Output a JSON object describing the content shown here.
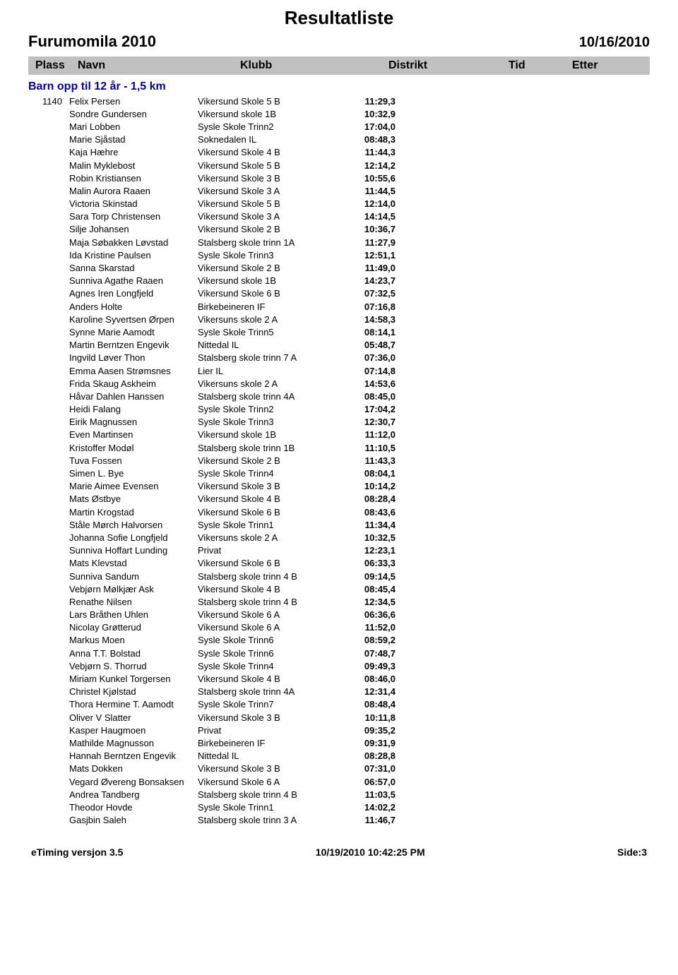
{
  "header": {
    "title": "Resultatliste",
    "event": "Furumomila 2010",
    "date": "10/16/2010"
  },
  "columns": {
    "plass": "Plass",
    "navn": "Navn",
    "klubb": "Klubb",
    "distrikt": "Distrikt",
    "tid": "Tid",
    "etter": "Etter"
  },
  "category": "Barn opp til 12 år - 1,5 km",
  "colors": {
    "header_bg": "#c0c0c0",
    "category_text": "#000080",
    "body_text": "#000000",
    "background": "#ffffff"
  },
  "fonts": {
    "title_size_pt": 26,
    "event_size_pt": 22,
    "date_size_pt": 20,
    "header_size_pt": 16,
    "category_size_pt": 16,
    "row_size_pt": 13,
    "footer_size_pt": 14
  },
  "rows": [
    {
      "plass": "1140",
      "navn": "Felix Persen",
      "klubb": "Vikersund Skole 5 B",
      "tid": "11:29,3"
    },
    {
      "plass": "",
      "navn": "Sondre Gundersen",
      "klubb": "Vikersund skole 1B",
      "tid": "10:32,9"
    },
    {
      "plass": "",
      "navn": "Mari Lobben",
      "klubb": "Sysle Skole Trinn2",
      "tid": "17:04,0"
    },
    {
      "plass": "",
      "navn": "Marie Sjåstad",
      "klubb": "Soknedalen IL",
      "tid": "08:48,3"
    },
    {
      "plass": "",
      "navn": "Kaja Hæhre",
      "klubb": "Vikersund Skole 4 B",
      "tid": "11:44,3"
    },
    {
      "plass": "",
      "navn": "Malin Myklebost",
      "klubb": "Vikersund Skole 5 B",
      "tid": "12:14,2"
    },
    {
      "plass": "",
      "navn": "Robin Kristiansen",
      "klubb": "Vikersund Skole 3 B",
      "tid": "10:55,6"
    },
    {
      "plass": "",
      "navn": "Malin Aurora Raaen",
      "klubb": "Vikersund Skole 3 A",
      "tid": "11:44,5"
    },
    {
      "plass": "",
      "navn": "Victoria Skinstad",
      "klubb": "Vikersund Skole 5 B",
      "tid": "12:14,0"
    },
    {
      "plass": "",
      "navn": "Sara Torp Christensen",
      "klubb": "Vikersund Skole 3 A",
      "tid": "14:14,5"
    },
    {
      "plass": "",
      "navn": "Silje Johansen",
      "klubb": "Vikersund Skole 2 B",
      "tid": "10:36,7"
    },
    {
      "plass": "",
      "navn": "Maja Søbakken Løvstad",
      "klubb": "Stalsberg skole trinn 1A",
      "tid": "11:27,9"
    },
    {
      "plass": "",
      "navn": "Ida Kristine Paulsen",
      "klubb": "Sysle Skole Trinn3",
      "tid": "12:51,1"
    },
    {
      "plass": "",
      "navn": "Sanna Skarstad",
      "klubb": "Vikersund Skole 2 B",
      "tid": "11:49,0"
    },
    {
      "plass": "",
      "navn": "Sunniva Agathe Raaen",
      "klubb": "Vikersund skole 1B",
      "tid": "14:23,7"
    },
    {
      "plass": "",
      "navn": "Agnes Iren Longfjeld",
      "klubb": "Vikersund Skole 6 B",
      "tid": "07:32,5"
    },
    {
      "plass": "",
      "navn": "Anders Holte",
      "klubb": "Birkebeineren IF",
      "tid": "07:16,8"
    },
    {
      "plass": "",
      "navn": "Karoline Syvertsen Ørpen",
      "klubb": "Vikersuns skole 2 A",
      "tid": "14:58,3"
    },
    {
      "plass": "",
      "navn": "Synne Marie Aamodt",
      "klubb": "Sysle Skole Trinn5",
      "tid": "08:14,1"
    },
    {
      "plass": "",
      "navn": "Martin Berntzen Engevik",
      "klubb": "Nittedal IL",
      "tid": "05:48,7"
    },
    {
      "plass": "",
      "navn": "Ingvild Løver Thon",
      "klubb": "Stalsberg skole trinn 7 A",
      "tid": "07:36,0"
    },
    {
      "plass": "",
      "navn": "Emma Aasen Strømsnes",
      "klubb": "Lier IL",
      "tid": "07:14,8"
    },
    {
      "plass": "",
      "navn": "Frida Skaug Askheim",
      "klubb": "Vikersuns skole 2 A",
      "tid": "14:53,6"
    },
    {
      "plass": "",
      "navn": "Håvar Dahlen Hanssen",
      "klubb": "Stalsberg skole trinn 4A",
      "tid": "08:45,0"
    },
    {
      "plass": "",
      "navn": "Heidi Falang",
      "klubb": "Sysle Skole Trinn2",
      "tid": "17:04,2"
    },
    {
      "plass": "",
      "navn": "Eirik Magnussen",
      "klubb": "Sysle Skole Trinn3",
      "tid": "12:30,7"
    },
    {
      "plass": "",
      "navn": "Even Martinsen",
      "klubb": "Vikersund skole 1B",
      "tid": "11:12,0"
    },
    {
      "plass": "",
      "navn": "Kristoffer Modøl",
      "klubb": "Stalsberg skole trinn 1B",
      "tid": "11:10,5"
    },
    {
      "plass": "",
      "navn": "Tuva Fossen",
      "klubb": "Vikersund Skole 2 B",
      "tid": "11:43,3"
    },
    {
      "plass": "",
      "navn": "Simen L. Bye",
      "klubb": "Sysle Skole Trinn4",
      "tid": "08:04,1"
    },
    {
      "plass": "",
      "navn": "Marie Aimee Evensen",
      "klubb": "Vikersund Skole 3 B",
      "tid": "10:14,2"
    },
    {
      "plass": "",
      "navn": "Mats Østbye",
      "klubb": "Vikersund Skole 4 B",
      "tid": "08:28,4"
    },
    {
      "plass": "",
      "navn": "Martin Krogstad",
      "klubb": "Vikersund Skole 6 B",
      "tid": "08:43,6"
    },
    {
      "plass": "",
      "navn": "Ståle Mørch Halvorsen",
      "klubb": "Sysle Skole Trinn1",
      "tid": "11:34,4"
    },
    {
      "plass": "",
      "navn": "Johanna Sofie Longfjeld",
      "klubb": "Vikersuns skole 2 A",
      "tid": "10:32,5"
    },
    {
      "plass": "",
      "navn": "Sunniva Hoffart Lunding",
      "klubb": "Privat",
      "tid": "12:23,1"
    },
    {
      "plass": "",
      "navn": "Mats Klevstad",
      "klubb": "Vikersund Skole 6 B",
      "tid": "06:33,3"
    },
    {
      "plass": "",
      "navn": "Sunniva Sandum",
      "klubb": "Stalsberg skole trinn 4 B",
      "tid": "09:14,5"
    },
    {
      "plass": "",
      "navn": "Vebjørn Mølkjær Ask",
      "klubb": "Vikersund Skole 4 B",
      "tid": "08:45,4"
    },
    {
      "plass": "",
      "navn": "Renathe Nilsen",
      "klubb": "Stalsberg skole trinn 4 B",
      "tid": "12:34,5"
    },
    {
      "plass": "",
      "navn": "Lars Bråthen Uhlen",
      "klubb": "Vikersund Skole 6 A",
      "tid": "06:36,6"
    },
    {
      "plass": "",
      "navn": "Nicolay Grøtterud",
      "klubb": "Vikersund Skole 6 A",
      "tid": "11:52,0"
    },
    {
      "plass": "",
      "navn": "Markus Moen",
      "klubb": "Sysle Skole Trinn6",
      "tid": "08:59,2"
    },
    {
      "plass": "",
      "navn": "Anna T.T. Bolstad",
      "klubb": "Sysle Skole Trinn6",
      "tid": "07:48,7"
    },
    {
      "plass": "",
      "navn": "Vebjørn S. Thorrud",
      "klubb": "Sysle Skole Trinn4",
      "tid": "09:49,3"
    },
    {
      "plass": "",
      "navn": "Miriam Kunkel Torgersen",
      "klubb": "Vikersund Skole 4 B",
      "tid": "08:46,0"
    },
    {
      "plass": "",
      "navn": "Christel Kjølstad",
      "klubb": "Stalsberg skole trinn 4A",
      "tid": "12:31,4"
    },
    {
      "plass": "",
      "navn": "Thora Hermine T. Aamodt",
      "klubb": "Sysle Skole Trinn7",
      "tid": "08:48,4"
    },
    {
      "plass": "",
      "navn": "Oliver V Slatter",
      "klubb": "Vikersund Skole 3 B",
      "tid": "10:11,8"
    },
    {
      "plass": "",
      "navn": "Kasper Haugmoen",
      "klubb": "Privat",
      "tid": "09:35,2"
    },
    {
      "plass": "",
      "navn": "Mathilde Magnusson",
      "klubb": "Birkebeineren IF",
      "tid": "09:31,9"
    },
    {
      "plass": "",
      "navn": "Hannah Berntzen Engevik",
      "klubb": "Nittedal IL",
      "tid": "08:28,8"
    },
    {
      "plass": "",
      "navn": "Mats Dokken",
      "klubb": "Vikersund Skole 3 B",
      "tid": "07:31,0"
    },
    {
      "plass": "",
      "navn": "Vegard Øvereng Bonsaksen",
      "klubb": "Vikersund Skole 6 A",
      "tid": "06:57,0"
    },
    {
      "plass": "",
      "navn": "Andrea Tandberg",
      "klubb": "Stalsberg skole trinn 4 B",
      "tid": "11:03,5"
    },
    {
      "plass": "",
      "navn": "Theodor Hovde",
      "klubb": "Sysle Skole Trinn1",
      "tid": "14:02,2"
    },
    {
      "plass": "",
      "navn": "Gasjbin Saleh",
      "klubb": "Stalsberg skole trinn 3 A",
      "tid": "11:46,7"
    }
  ],
  "footer": {
    "left": "eTiming versjon 3.5",
    "center": "10/19/2010 10:42:25 PM",
    "right": "Side:3"
  }
}
